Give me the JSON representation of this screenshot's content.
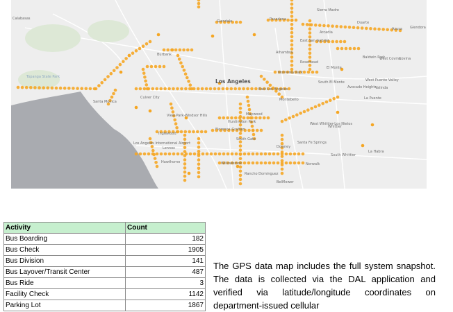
{
  "map": {
    "place_labels": [
      "Calabasas",
      "Glendale",
      "Pasadena",
      "Sierra Madre",
      "Duarte",
      "Azusa",
      "Glendora",
      "Arcadia",
      "East San Gabriel",
      "Burbank",
      "Alhambra",
      "Rosemead",
      "El Monte",
      "Baldwin Park",
      "West Covina",
      "Covina",
      "Topanga State Park",
      "Santa Monica",
      "Culver City",
      "Los Angeles",
      "Monterey Park",
      "South El Monte",
      "West Puente Valley",
      "Avocado Heights",
      "Valinda",
      "East Los Angeles",
      "Montebello",
      "La Puente",
      "View Park-Windsor Hills",
      "Maywood",
      "Huntington Park",
      "Inglewood",
      "Florence-Graham",
      "South Gate",
      "West Whittier-Los Nietos",
      "Whittier",
      "Los Angeles International Airport",
      "Lennox",
      "Hawthorne",
      "Downey",
      "Santa Fe Springs",
      "South Whittier",
      "La Habra",
      "Willowbrook",
      "Norwalk",
      "Bellflower",
      "Rancho Dominguez"
    ]
  },
  "table": {
    "headers": [
      "Activity",
      "Count"
    ],
    "rows": [
      {
        "activity": "Bus Boarding",
        "count": "182"
      },
      {
        "activity": "Bus Check",
        "count": "1905"
      },
      {
        "activity": "Bus Division",
        "count": "141"
      },
      {
        "activity": "Bus Layover/Transit Center",
        "count": "487"
      },
      {
        "activity": "Bus Ride",
        "count": "3"
      },
      {
        "activity": "Facility Check",
        "count": "1142"
      },
      {
        "activity": "Parking Lot",
        "count": "1867"
      }
    ]
  },
  "description": "The GPS data map includes the full system snapshot. The data is collected via the DAL application and verified via latitude/longitude coordinates on department-issued cellular",
  "colors": {
    "dot": "#f5a623",
    "ocean": "#a9abb0",
    "land": "#eeeeee",
    "table_header": "#c6efce"
  }
}
